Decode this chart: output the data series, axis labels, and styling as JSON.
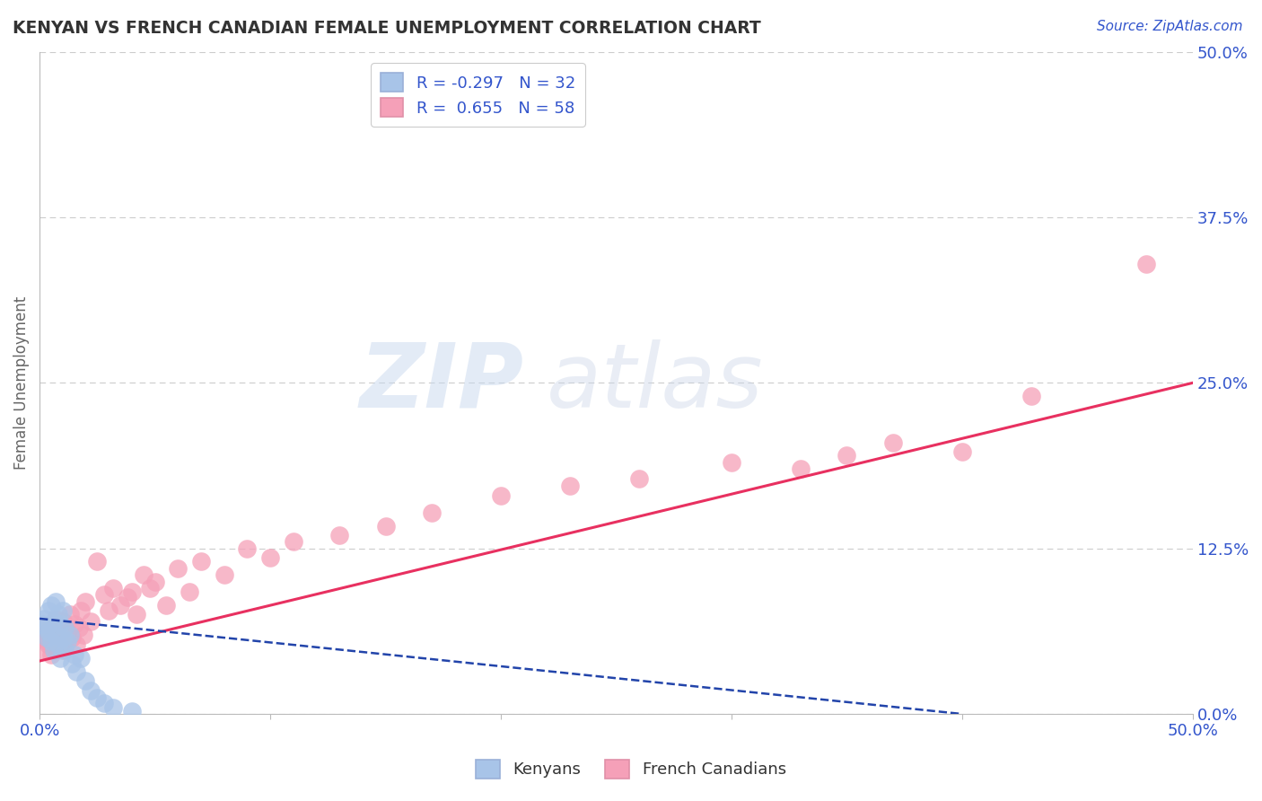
{
  "title": "KENYAN VS FRENCH CANADIAN FEMALE UNEMPLOYMENT CORRELATION CHART",
  "source": "Source: ZipAtlas.com",
  "ylabel": "Female Unemployment",
  "xlim": [
    0,
    0.5
  ],
  "ylim": [
    0,
    0.5
  ],
  "xtick_vals": [
    0.0,
    0.1,
    0.2,
    0.3,
    0.4,
    0.5
  ],
  "xtick_labels": [
    "0.0%",
    "",
    "",
    "",
    "",
    "50.0%"
  ],
  "ytick_vals": [
    0.0,
    0.125,
    0.25,
    0.375,
    0.5
  ],
  "ytick_labels": [
    "0.0%",
    "12.5%",
    "25.0%",
    "37.5%",
    "50.0%"
  ],
  "kenyan_color": "#a8c4e8",
  "french_color": "#f5a0b8",
  "kenyan_line_color": "#2244aa",
  "french_line_color": "#e83060",
  "kenyan_R": -0.297,
  "kenyan_N": 32,
  "french_R": 0.655,
  "french_N": 58,
  "watermark_zip": "ZIP",
  "watermark_atlas": "atlas",
  "background_color": "#ffffff",
  "grid_color": "#cccccc",
  "title_color": "#333333",
  "axis_label_color": "#666666",
  "tick_color": "#3355cc",
  "kenyan_scatter": [
    [
      0.001,
      0.068
    ],
    [
      0.002,
      0.072
    ],
    [
      0.003,
      0.058
    ],
    [
      0.003,
      0.065
    ],
    [
      0.004,
      0.078
    ],
    [
      0.004,
      0.062
    ],
    [
      0.005,
      0.055
    ],
    [
      0.005,
      0.082
    ],
    [
      0.006,
      0.07
    ],
    [
      0.006,
      0.048
    ],
    [
      0.007,
      0.085
    ],
    [
      0.007,
      0.06
    ],
    [
      0.008,
      0.052
    ],
    [
      0.008,
      0.075
    ],
    [
      0.009,
      0.068
    ],
    [
      0.009,
      0.042
    ],
    [
      0.01,
      0.078
    ],
    [
      0.01,
      0.058
    ],
    [
      0.011,
      0.065
    ],
    [
      0.011,
      0.048
    ],
    [
      0.012,
      0.055
    ],
    [
      0.013,
      0.06
    ],
    [
      0.014,
      0.038
    ],
    [
      0.015,
      0.045
    ],
    [
      0.016,
      0.032
    ],
    [
      0.018,
      0.042
    ],
    [
      0.02,
      0.025
    ],
    [
      0.022,
      0.018
    ],
    [
      0.025,
      0.012
    ],
    [
      0.028,
      0.008
    ],
    [
      0.032,
      0.005
    ],
    [
      0.04,
      0.002
    ]
  ],
  "french_scatter": [
    [
      0.001,
      0.065
    ],
    [
      0.002,
      0.058
    ],
    [
      0.002,
      0.048
    ],
    [
      0.003,
      0.062
    ],
    [
      0.003,
      0.055
    ],
    [
      0.004,
      0.052
    ],
    [
      0.005,
      0.068
    ],
    [
      0.005,
      0.045
    ],
    [
      0.006,
      0.06
    ],
    [
      0.007,
      0.072
    ],
    [
      0.007,
      0.05
    ],
    [
      0.008,
      0.058
    ],
    [
      0.009,
      0.065
    ],
    [
      0.01,
      0.048
    ],
    [
      0.01,
      0.07
    ],
    [
      0.011,
      0.055
    ],
    [
      0.012,
      0.062
    ],
    [
      0.013,
      0.075
    ],
    [
      0.014,
      0.058
    ],
    [
      0.015,
      0.068
    ],
    [
      0.016,
      0.052
    ],
    [
      0.017,
      0.065
    ],
    [
      0.018,
      0.078
    ],
    [
      0.019,
      0.06
    ],
    [
      0.02,
      0.085
    ],
    [
      0.022,
      0.07
    ],
    [
      0.025,
      0.115
    ],
    [
      0.028,
      0.09
    ],
    [
      0.03,
      0.078
    ],
    [
      0.032,
      0.095
    ],
    [
      0.035,
      0.082
    ],
    [
      0.038,
      0.088
    ],
    [
      0.04,
      0.092
    ],
    [
      0.042,
      0.075
    ],
    [
      0.045,
      0.105
    ],
    [
      0.048,
      0.095
    ],
    [
      0.05,
      0.1
    ],
    [
      0.055,
      0.082
    ],
    [
      0.06,
      0.11
    ],
    [
      0.065,
      0.092
    ],
    [
      0.07,
      0.115
    ],
    [
      0.08,
      0.105
    ],
    [
      0.09,
      0.125
    ],
    [
      0.1,
      0.118
    ],
    [
      0.11,
      0.13
    ],
    [
      0.13,
      0.135
    ],
    [
      0.15,
      0.142
    ],
    [
      0.17,
      0.152
    ],
    [
      0.2,
      0.165
    ],
    [
      0.23,
      0.172
    ],
    [
      0.26,
      0.178
    ],
    [
      0.3,
      0.19
    ],
    [
      0.33,
      0.185
    ],
    [
      0.35,
      0.195
    ],
    [
      0.37,
      0.205
    ],
    [
      0.4,
      0.198
    ],
    [
      0.43,
      0.24
    ],
    [
      0.48,
      0.34
    ]
  ],
  "french_line_x": [
    0.0,
    0.5
  ],
  "french_line_y": [
    0.04,
    0.25
  ],
  "kenyan_line_x": [
    0.0,
    0.4
  ],
  "kenyan_line_y": [
    0.072,
    0.0
  ]
}
